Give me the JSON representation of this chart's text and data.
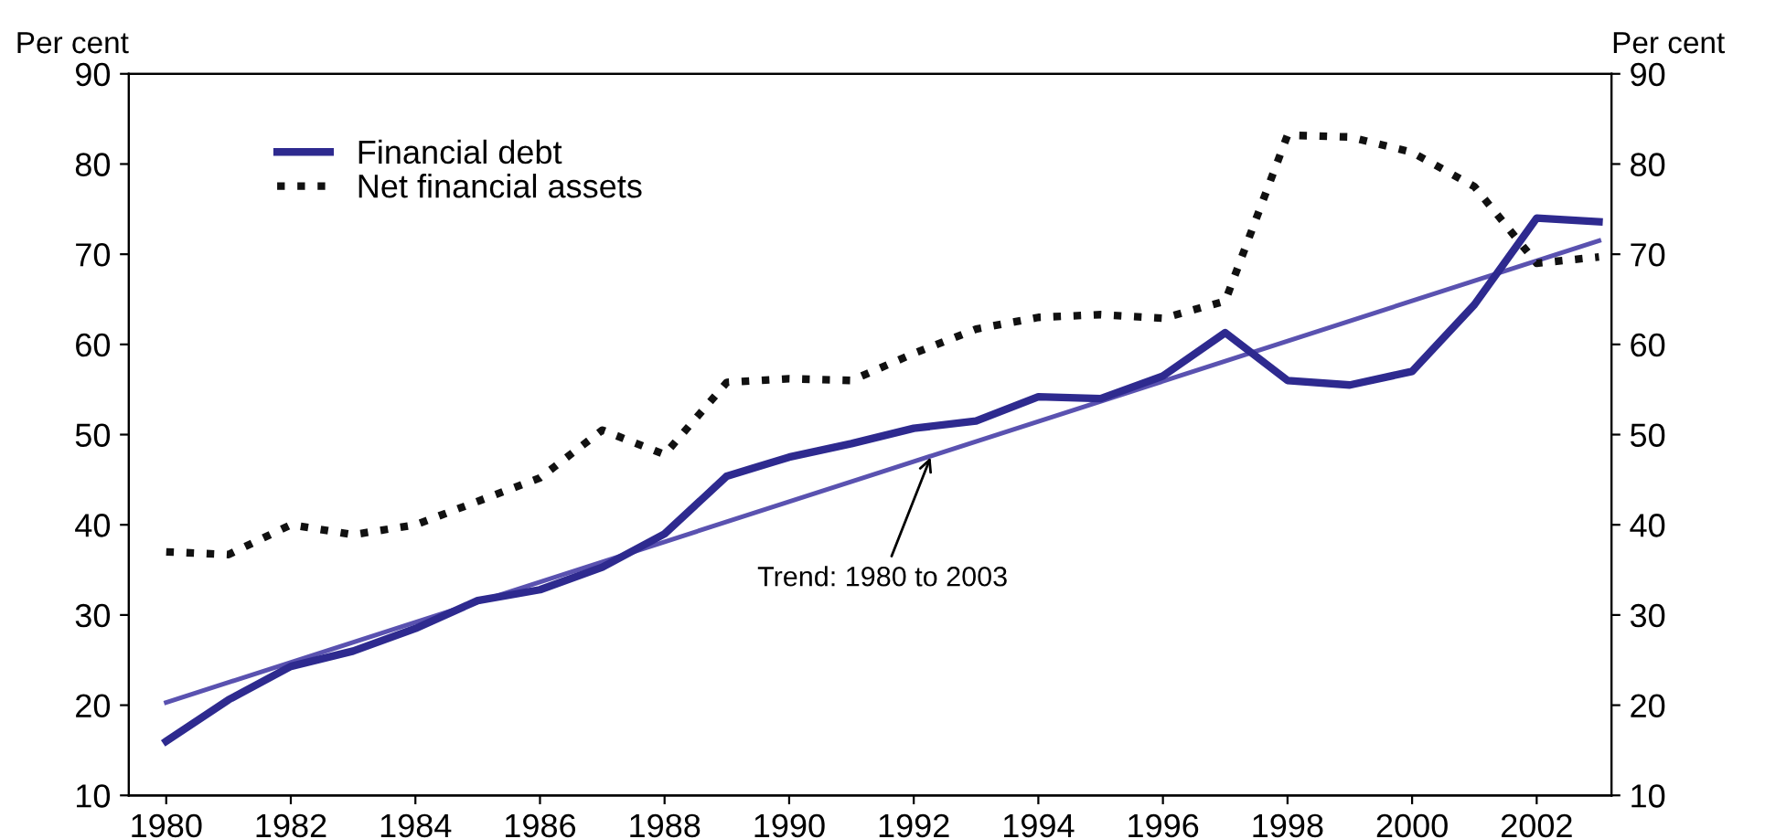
{
  "chart_data": {
    "type": "line",
    "x": [
      1980,
      1981,
      1982,
      1983,
      1984,
      1985,
      1986,
      1987,
      1988,
      1989,
      1990,
      1991,
      1992,
      1993,
      1994,
      1995,
      1996,
      1997,
      1998,
      1999,
      2000,
      2001,
      2002,
      2003
    ],
    "series": [
      {
        "name": "Financial debt",
        "color": "#2e2a8f",
        "line_style": "solid",
        "values": [
          16,
          20.6,
          24.3,
          26,
          28.5,
          31.6,
          32.8,
          35.3,
          39,
          45.4,
          47.5,
          49,
          50.7,
          51.5,
          54.2,
          54,
          56.5,
          61.3,
          56,
          55.5,
          57,
          64.4,
          74,
          73.6
        ]
      },
      {
        "name": "Net financial assets",
        "color": "#111111",
        "line_style": "dotted",
        "values": [
          37,
          36.7,
          40,
          38.9,
          40,
          42.6,
          45.2,
          50.5,
          47.8,
          55.8,
          56.2,
          56,
          59,
          61.7,
          63,
          63.3,
          62.9,
          64.8,
          83.2,
          83,
          81.3,
          77.5,
          69,
          69.7
        ]
      },
      {
        "type": "line",
        "color": "#5a52b0",
        "line_style": "solid",
        "x": [
          1980,
          2003
        ],
        "values": [
          20.3,
          71.5
        ]
      }
    ],
    "ylabel": "Per cent",
    "y2label": "Per cent",
    "xlim": [
      1979.4,
      2003.2
    ],
    "xticks": [
      1980,
      1982,
      1984,
      1986,
      1988,
      1990,
      1992,
      1994,
      1996,
      1998,
      2000,
      2002
    ],
    "ylim": [
      10,
      90
    ],
    "yticks": [
      10,
      20,
      30,
      40,
      50,
      60,
      70,
      80,
      90
    ],
    "y2lim": [
      10,
      90
    ],
    "y2ticks": [
      10,
      20,
      30,
      40,
      50,
      60,
      70,
      80,
      90
    ],
    "annotations": [
      {
        "text": "Trend: 1980 to 2003",
        "x": 1992.3,
        "y": 48
      }
    ],
    "legend": "top left",
    "grid": false,
    "marker": "none"
  }
}
